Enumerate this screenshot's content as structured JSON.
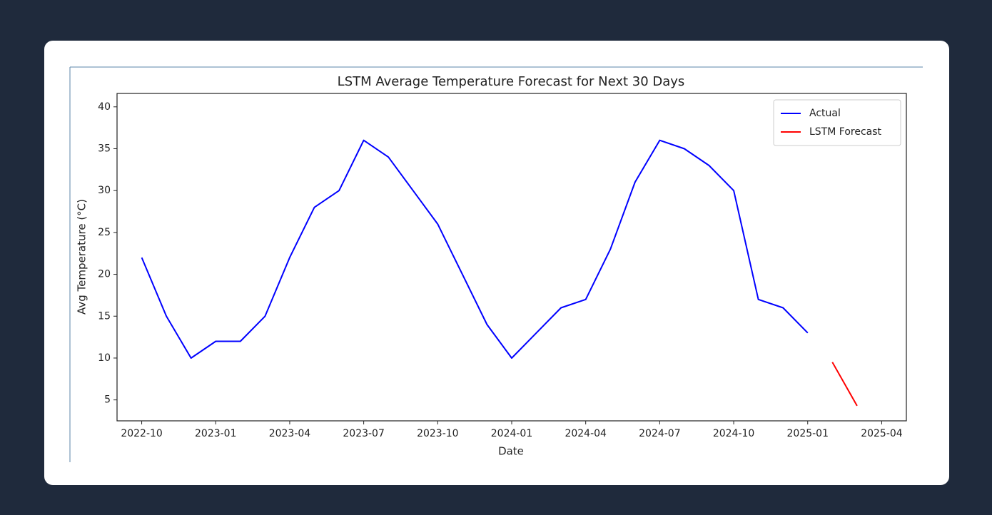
{
  "chart_data": {
    "type": "line",
    "title": "LSTM Average Temperature Forecast for Next 30 Days",
    "x_label": "Date",
    "y_label": "Avg Temperature (°C)",
    "x": [
      "2022-10",
      "2022-11",
      "2022-12",
      "2023-01",
      "2023-02",
      "2023-03",
      "2023-04",
      "2023-05",
      "2023-06",
      "2023-07",
      "2023-08",
      "2023-09",
      "2023-10",
      "2023-11",
      "2023-12",
      "2024-01",
      "2024-02",
      "2024-03",
      "2024-04",
      "2024-05",
      "2024-06",
      "2024-07",
      "2024-08",
      "2024-09",
      "2024-10",
      "2024-11",
      "2024-12",
      "2025-01",
      "2025-02",
      "2025-03"
    ],
    "series": [
      {
        "name": "Actual",
        "color": "#0000ff",
        "values": [
          22,
          15,
          10,
          12,
          12,
          15,
          22,
          28,
          30,
          36,
          34,
          30,
          26,
          20,
          14,
          10,
          13,
          16,
          17,
          23,
          31,
          36,
          35,
          33,
          30,
          17,
          16,
          13,
          null,
          null
        ]
      },
      {
        "name": "LSTM Forecast",
        "color": "#ff0000",
        "values": [
          null,
          null,
          null,
          null,
          null,
          null,
          null,
          null,
          null,
          null,
          null,
          null,
          null,
          null,
          null,
          null,
          null,
          null,
          null,
          null,
          null,
          null,
          null,
          null,
          null,
          null,
          null,
          null,
          9.5,
          4.3
        ]
      }
    ],
    "xlim": [
      "2022-09",
      "2025-05"
    ],
    "ylim": [
      2.5,
      41.6
    ],
    "xticks": [
      "2022-10",
      "2023-01",
      "2023-04",
      "2023-07",
      "2023-10",
      "2024-01",
      "2024-04",
      "2024-07",
      "2024-10",
      "2025-01",
      "2025-04"
    ],
    "yticks": [
      5,
      10,
      15,
      20,
      25,
      30,
      35,
      40
    ],
    "legend": "upper right"
  }
}
